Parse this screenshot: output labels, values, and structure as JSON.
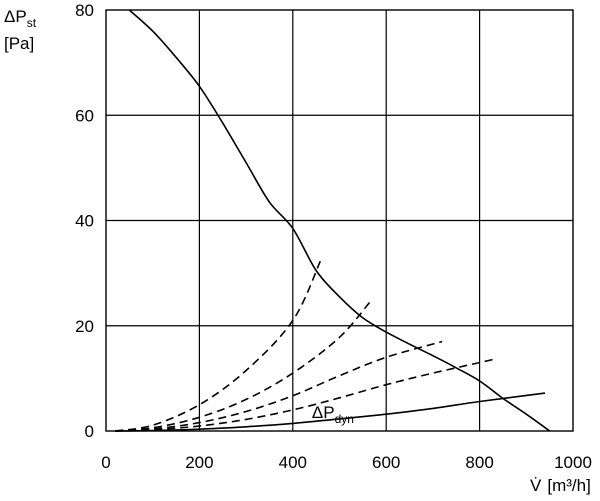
{
  "chart_data": {
    "type": "line",
    "ylabel": {
      "symbol": "ΔP",
      "subscript": "st",
      "unit": "[Pa]"
    },
    "xlabel": {
      "symbol": "V̇",
      "unit": "[m³/h]"
    },
    "xlim": [
      0,
      1000
    ],
    "ylim": [
      0,
      80
    ],
    "x_ticks": [
      0,
      200,
      400,
      600,
      800,
      1000
    ],
    "y_ticks": [
      0,
      20,
      40,
      60,
      80
    ],
    "grid": true,
    "annotations": [
      {
        "text": "ΔP",
        "subscript": "dyn",
        "x": 655,
        "y": 3.8
      }
    ],
    "series": [
      {
        "style": "solid",
        "points": [
          [
            50,
            80
          ],
          [
            100,
            76
          ],
          [
            150,
            71
          ],
          [
            200,
            65.5
          ],
          [
            250,
            58.5
          ],
          [
            300,
            51
          ],
          [
            350,
            43.5
          ],
          [
            400,
            38.5
          ],
          [
            450,
            30.5
          ],
          [
            500,
            25.5
          ],
          [
            550,
            21.5
          ],
          [
            600,
            18.8
          ],
          [
            650,
            16.5
          ],
          [
            700,
            14.3
          ],
          [
            750,
            12
          ],
          [
            800,
            9.5
          ],
          [
            850,
            6.2
          ],
          [
            900,
            3.2
          ],
          [
            950,
            0
          ]
        ]
      },
      {
        "style": "solid",
        "points": [
          [
            20,
            0
          ],
          [
            100,
            0.08
          ],
          [
            200,
            0.35
          ],
          [
            300,
            0.8
          ],
          [
            400,
            1.45
          ],
          [
            500,
            2.3
          ],
          [
            600,
            3.2
          ],
          [
            700,
            4.3
          ],
          [
            800,
            5.6
          ],
          [
            940,
            7.2
          ]
        ]
      },
      {
        "style": "dashed",
        "points": [
          [
            20,
            0
          ],
          [
            100,
            1.1
          ],
          [
            200,
            5
          ],
          [
            300,
            11.5
          ],
          [
            400,
            21
          ],
          [
            460,
            32.5
          ]
        ]
      },
      {
        "style": "dashed",
        "points": [
          [
            20,
            0
          ],
          [
            100,
            0.6
          ],
          [
            200,
            2.6
          ],
          [
            300,
            6
          ],
          [
            400,
            11
          ],
          [
            500,
            17.8
          ],
          [
            565,
            24.5
          ]
        ]
      },
      {
        "style": "dashed",
        "points": [
          [
            20,
            0
          ],
          [
            100,
            0.36
          ],
          [
            200,
            1.6
          ],
          [
            300,
            3.7
          ],
          [
            400,
            6.7
          ],
          [
            500,
            10.5
          ],
          [
            600,
            14
          ],
          [
            720,
            17
          ]
        ]
      },
      {
        "style": "dashed",
        "points": [
          [
            20,
            0
          ],
          [
            100,
            0.22
          ],
          [
            200,
            0.95
          ],
          [
            300,
            2.2
          ],
          [
            400,
            4
          ],
          [
            500,
            6.3
          ],
          [
            600,
            8.8
          ],
          [
            700,
            11
          ],
          [
            830,
            13.6
          ]
        ]
      }
    ]
  }
}
